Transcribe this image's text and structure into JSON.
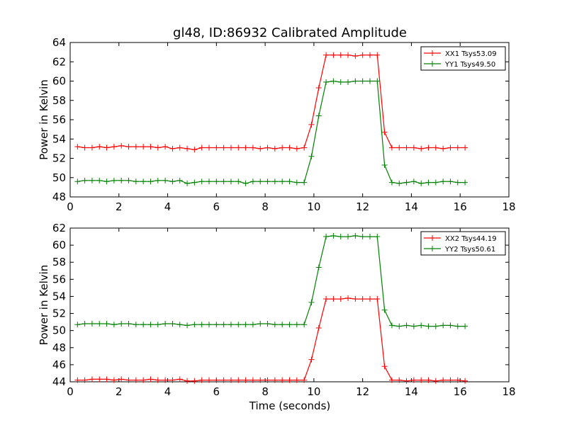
{
  "figure": {
    "title": "gl48, ID:86932 Calibrated Amplitude",
    "xlabel": "Time (seconds)"
  },
  "chart_data": [
    {
      "type": "line",
      "title": "gl48, ID:86932 Calibrated Amplitude",
      "xlabel": "",
      "ylabel": "Power in Kelvin",
      "xlim": [
        0,
        18
      ],
      "ylim": [
        48,
        64
      ],
      "xticks": [
        "0",
        "2",
        "4",
        "6",
        "8",
        "10",
        "12",
        "14",
        "16",
        "18"
      ],
      "yticks": [
        "48",
        "50",
        "52",
        "54",
        "56",
        "58",
        "60",
        "62",
        "64"
      ],
      "grid": false,
      "legend_position": "top-right",
      "x": [
        0.3,
        0.6,
        0.9,
        1.2,
        1.5,
        1.8,
        2.1,
        2.4,
        2.7,
        3.0,
        3.3,
        3.6,
        3.9,
        4.2,
        4.5,
        4.8,
        5.1,
        5.4,
        5.7,
        6.0,
        6.3,
        6.6,
        6.9,
        7.2,
        7.5,
        7.8,
        8.1,
        8.4,
        8.7,
        9.0,
        9.3,
        9.6,
        9.9,
        10.2,
        10.5,
        10.8,
        11.1,
        11.4,
        11.7,
        12.0,
        12.3,
        12.6,
        12.9,
        13.2,
        13.5,
        13.8,
        14.1,
        14.4,
        14.7,
        15.0,
        15.3,
        15.6,
        15.9,
        16.2
      ],
      "series": [
        {
          "name": "XX1 Tsys53.09",
          "color": "#ff0000",
          "values": [
            53.2,
            53.1,
            53.1,
            53.2,
            53.1,
            53.2,
            53.3,
            53.2,
            53.2,
            53.2,
            53.2,
            53.1,
            53.2,
            53.0,
            53.1,
            53.0,
            52.9,
            53.1,
            53.1,
            53.1,
            53.1,
            53.1,
            53.1,
            53.1,
            53.1,
            53.0,
            53.1,
            53.0,
            53.1,
            53.1,
            53.0,
            53.1,
            55.5,
            59.3,
            62.7,
            62.7,
            62.7,
            62.7,
            62.6,
            62.7,
            62.7,
            62.7,
            54.7,
            53.1,
            53.1,
            53.1,
            53.1,
            53.0,
            53.1,
            53.1,
            53.0,
            53.1,
            53.1,
            53.1
          ]
        },
        {
          "name": "YY1 Tsys49.50",
          "color": "#008000",
          "values": [
            49.6,
            49.7,
            49.7,
            49.7,
            49.6,
            49.7,
            49.7,
            49.7,
            49.6,
            49.6,
            49.6,
            49.7,
            49.7,
            49.6,
            49.7,
            49.4,
            49.5,
            49.6,
            49.6,
            49.6,
            49.6,
            49.6,
            49.6,
            49.4,
            49.6,
            49.6,
            49.6,
            49.6,
            49.6,
            49.6,
            49.5,
            49.5,
            52.2,
            56.4,
            59.9,
            60.0,
            59.9,
            59.9,
            60.0,
            60.0,
            60.0,
            60.0,
            51.3,
            49.5,
            49.4,
            49.5,
            49.6,
            49.4,
            49.5,
            49.5,
            49.6,
            49.6,
            49.5,
            49.5
          ]
        }
      ]
    },
    {
      "type": "line",
      "title": "",
      "xlabel": "Time (seconds)",
      "ylabel": "Power in Kelvin",
      "xlim": [
        0,
        18
      ],
      "ylim": [
        44,
        62
      ],
      "xticks": [
        "0",
        "2",
        "4",
        "6",
        "8",
        "10",
        "12",
        "14",
        "16",
        "18"
      ],
      "yticks": [
        "44",
        "46",
        "48",
        "50",
        "52",
        "54",
        "56",
        "58",
        "60",
        "62"
      ],
      "grid": false,
      "legend_position": "top-right",
      "x": [
        0.3,
        0.6,
        0.9,
        1.2,
        1.5,
        1.8,
        2.1,
        2.4,
        2.7,
        3.0,
        3.3,
        3.6,
        3.9,
        4.2,
        4.5,
        4.8,
        5.1,
        5.4,
        5.7,
        6.0,
        6.3,
        6.6,
        6.9,
        7.2,
        7.5,
        7.8,
        8.1,
        8.4,
        8.7,
        9.0,
        9.3,
        9.6,
        9.9,
        10.2,
        10.5,
        10.8,
        11.1,
        11.4,
        11.7,
        12.0,
        12.3,
        12.6,
        12.9,
        13.2,
        13.5,
        13.8,
        14.1,
        14.4,
        14.7,
        15.0,
        15.3,
        15.6,
        15.9,
        16.2
      ],
      "series": [
        {
          "name": "XX2 Tsys44.19",
          "color": "#ff0000",
          "values": [
            44.2,
            44.2,
            44.3,
            44.3,
            44.3,
            44.2,
            44.3,
            44.2,
            44.2,
            44.2,
            44.3,
            44.2,
            44.2,
            44.2,
            44.3,
            44.1,
            44.1,
            44.2,
            44.2,
            44.2,
            44.2,
            44.2,
            44.2,
            44.2,
            44.2,
            44.2,
            44.2,
            44.2,
            44.2,
            44.2,
            44.2,
            44.2,
            46.6,
            50.3,
            53.7,
            53.7,
            53.7,
            53.8,
            53.7,
            53.7,
            53.7,
            53.7,
            45.8,
            44.2,
            44.2,
            44.1,
            44.2,
            44.2,
            44.2,
            44.1,
            44.2,
            44.2,
            44.2,
            44.1
          ]
        },
        {
          "name": "YY2 Tsys50.61",
          "color": "#008000",
          "values": [
            50.7,
            50.8,
            50.8,
            50.8,
            50.8,
            50.7,
            50.8,
            50.8,
            50.7,
            50.7,
            50.7,
            50.7,
            50.8,
            50.8,
            50.7,
            50.6,
            50.7,
            50.7,
            50.7,
            50.7,
            50.7,
            50.7,
            50.7,
            50.7,
            50.7,
            50.8,
            50.8,
            50.7,
            50.7,
            50.7,
            50.7,
            50.7,
            53.3,
            57.4,
            61.0,
            61.1,
            61.0,
            61.0,
            61.1,
            61.0,
            61.0,
            61.0,
            52.4,
            50.6,
            50.5,
            50.6,
            50.5,
            50.6,
            50.5,
            50.5,
            50.6,
            50.6,
            50.5,
            50.5
          ]
        }
      ]
    }
  ]
}
